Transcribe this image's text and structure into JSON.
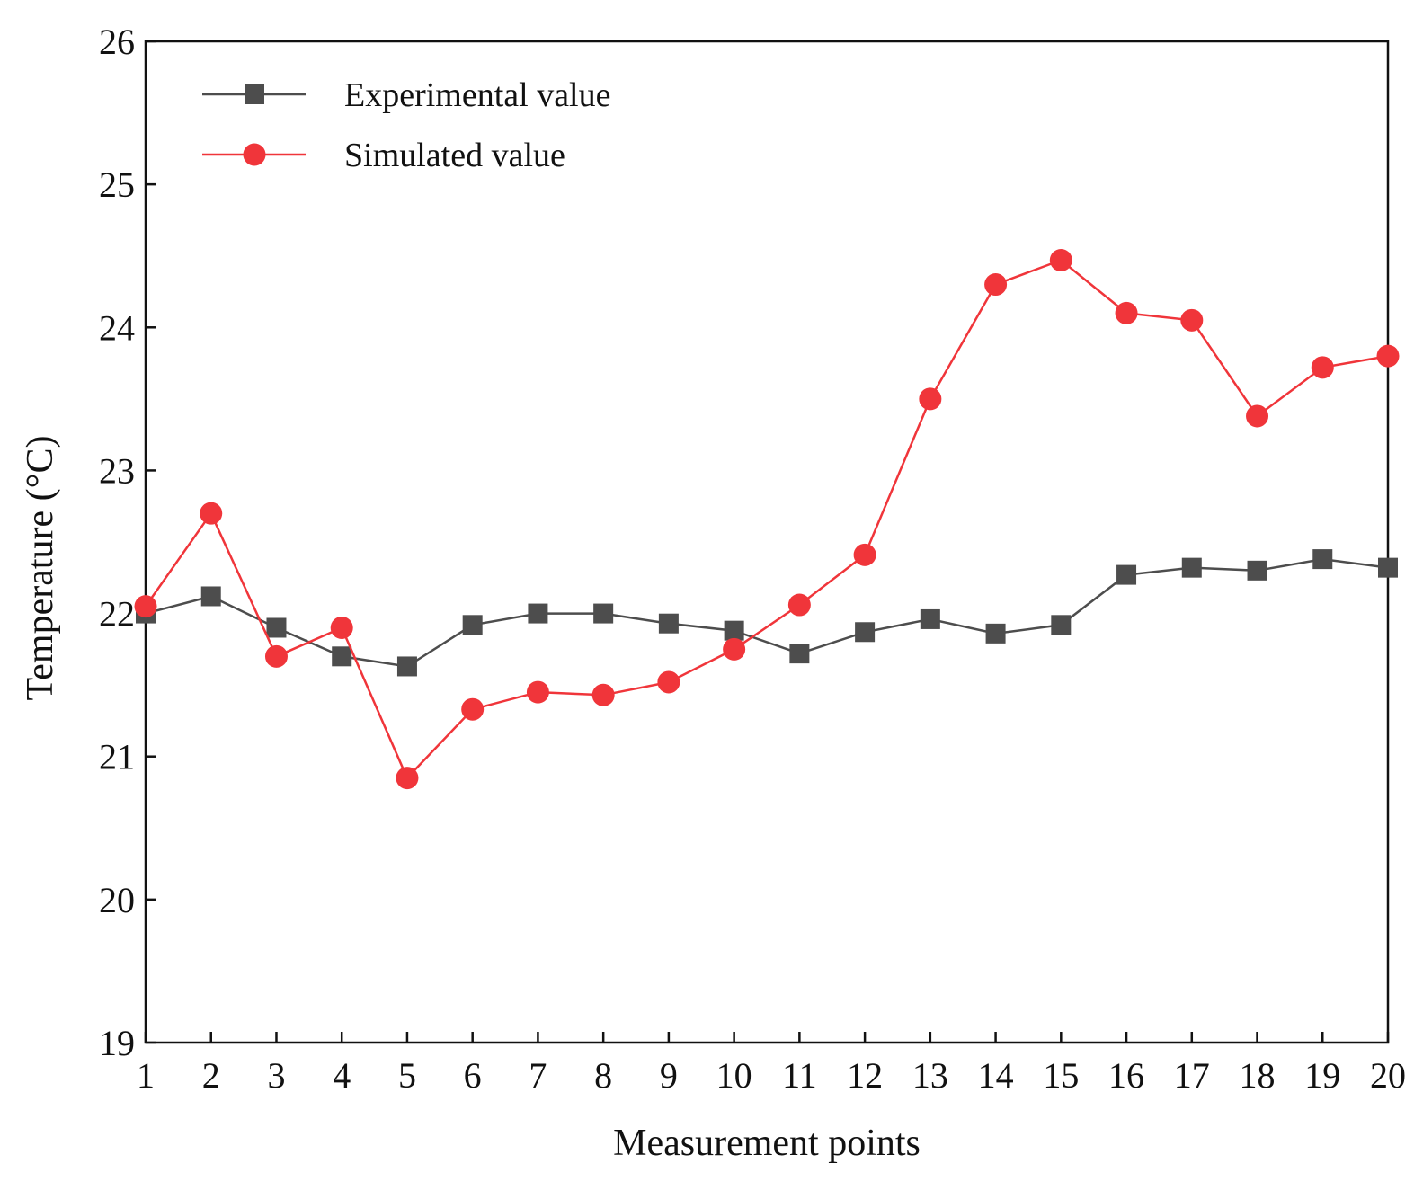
{
  "chart_data": {
    "type": "line",
    "title": "",
    "xlabel": "Measurement points",
    "ylabel": "Temperature (°C)",
    "x": [
      1,
      2,
      3,
      4,
      5,
      6,
      7,
      8,
      9,
      10,
      11,
      12,
      13,
      14,
      15,
      16,
      17,
      18,
      19,
      20
    ],
    "x_tick_labels": [
      "1",
      "2",
      "3",
      "4",
      "5",
      "6",
      "7",
      "8",
      "9",
      "10",
      "11",
      "12",
      "13",
      "14",
      "15",
      "16",
      "17",
      "18",
      "19",
      "20"
    ],
    "xlim": [
      1,
      20
    ],
    "ylim": [
      19,
      26
    ],
    "y_ticks": [
      19,
      20,
      21,
      22,
      23,
      24,
      25,
      26
    ],
    "y_tick_labels": [
      "19",
      "20",
      "21",
      "22",
      "23",
      "24",
      "25",
      "26"
    ],
    "grid": false,
    "legend_position": "top-left",
    "series": [
      {
        "name": "Experimental value",
        "color": "#4d4d4d",
        "marker": "square",
        "values": [
          22.0,
          22.12,
          21.9,
          21.7,
          21.63,
          21.92,
          22.0,
          22.0,
          21.93,
          21.88,
          21.72,
          21.87,
          21.96,
          21.86,
          21.92,
          22.27,
          22.32,
          22.3,
          22.38,
          22.32
        ]
      },
      {
        "name": "Simulated value",
        "color": "#f0353a",
        "marker": "circle",
        "values": [
          22.05,
          22.7,
          21.7,
          21.9,
          20.85,
          21.33,
          21.45,
          21.43,
          21.52,
          21.75,
          22.06,
          22.41,
          23.5,
          24.3,
          24.47,
          24.1,
          24.05,
          23.38,
          23.72,
          23.8
        ]
      }
    ]
  }
}
